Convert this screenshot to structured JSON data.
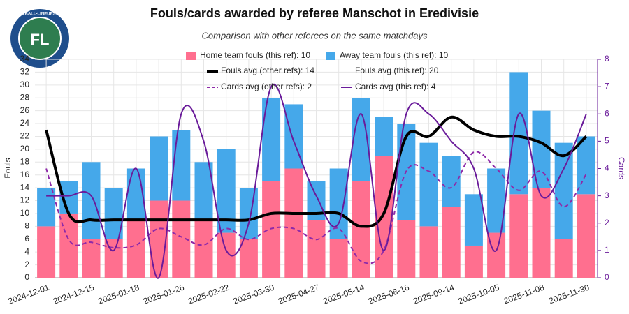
{
  "chart_data": {
    "type": "bar",
    "title": "Fouls/cards awarded by referee Manschot in Eredivisie",
    "subtitle": "Comparison with other referees on the same matchdays",
    "logo_text": "FOOTBALL-LINEUPS.COM",
    "ylabel": "Fouls",
    "y2label": "Cards",
    "categories": [
      "2024-12-01",
      null,
      "2024-12-15",
      null,
      "2025-01-18",
      null,
      "2025-01-26",
      null,
      "2025-02-22",
      null,
      "2025-03-30",
      null,
      "2025-04-27",
      null,
      "2025-05-14",
      null,
      "2025-08-16",
      null,
      "2025-09-14",
      null,
      "2025-10-05",
      null,
      "2025-11-08",
      null,
      "2025-11-30"
    ],
    "ylim": [
      0,
      34
    ],
    "yticks": [
      0,
      2,
      4,
      6,
      8,
      10,
      12,
      14,
      16,
      18,
      20,
      22,
      24,
      26,
      28,
      30,
      32,
      34
    ],
    "y2lim": [
      0,
      8
    ],
    "y2ticks": [
      0,
      1,
      2,
      3,
      4,
      5,
      6,
      7,
      8
    ],
    "grid": true,
    "series": [
      {
        "name": "Home team fouls (this ref): 10",
        "type": "bar",
        "stack": "fouls",
        "color": "#ff6f8f",
        "values": [
          8,
          10,
          6,
          6,
          9,
          12,
          12,
          9,
          7,
          6,
          15,
          17,
          9,
          6,
          15,
          19,
          9,
          8,
          11,
          5,
          7,
          13,
          14,
          6,
          13
        ]
      },
      {
        "name": "Away team fouls (this ref): 10",
        "type": "bar",
        "stack": "fouls",
        "color": "#45a8ea",
        "values": [
          6,
          5,
          12,
          8,
          8,
          10,
          11,
          9,
          13,
          8,
          13,
          10,
          6,
          11,
          13,
          6,
          15,
          13,
          8,
          8,
          10,
          19,
          12,
          15,
          9
        ]
      },
      {
        "name": "Fouls avg (other refs): 14",
        "type": "line",
        "color": "#000000",
        "width": 4,
        "values": [
          23,
          10,
          9,
          9,
          9,
          9,
          9,
          9,
          9,
          9,
          10,
          10,
          10,
          10,
          8,
          10,
          22,
          22,
          25,
          23,
          22,
          22,
          21,
          19,
          22
        ]
      },
      {
        "name": "Fouls avg (this ref): 20",
        "type": "line",
        "color": "transparent"
      },
      {
        "name": "Cards avg (other refs): 2",
        "type": "line",
        "axis": "y2",
        "dashed": true,
        "color": "#8e2aa8",
        "width": 2,
        "values": [
          4,
          1.4,
          1.3,
          1.1,
          1.2,
          1.8,
          1.5,
          1.2,
          1.8,
          1.4,
          1.8,
          1.8,
          1.4,
          1.8,
          0.6,
          1.0,
          3.9,
          3.9,
          3.3,
          4.6,
          4.0,
          3.2,
          3.9,
          2.6,
          3.8
        ]
      },
      {
        "name": "Cards avg (this ref): 4",
        "type": "line",
        "axis": "y2",
        "color": "#6a1b9a",
        "width": 2,
        "values": [
          3,
          3,
          3,
          1,
          4,
          0,
          6,
          5,
          1,
          2,
          7,
          5,
          3,
          2,
          6,
          1,
          6,
          6,
          5,
          4,
          1,
          6,
          3,
          4,
          6
        ]
      }
    ]
  }
}
